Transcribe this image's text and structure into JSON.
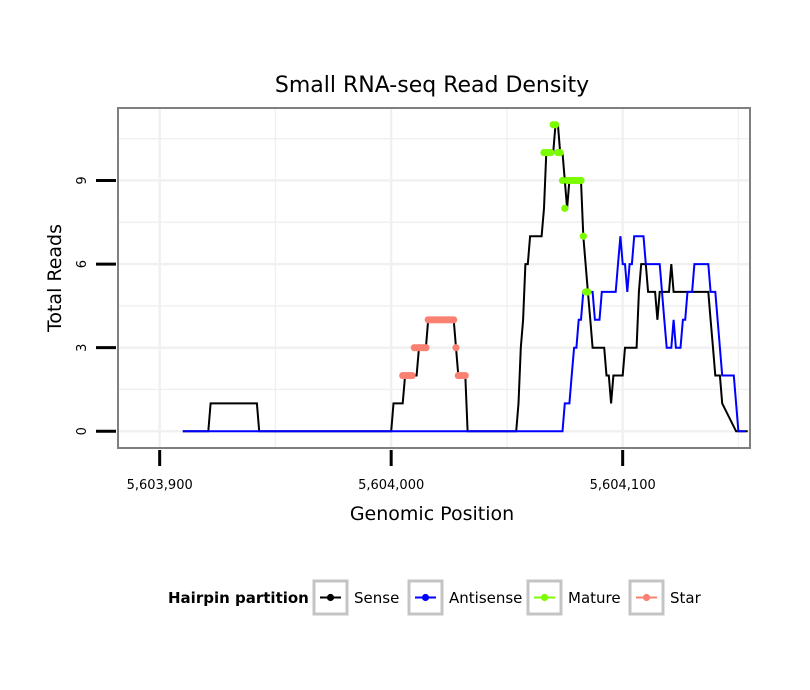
{
  "chart_data": {
    "type": "line",
    "title": "Small RNA-seq Read Density",
    "xlabel": "Genomic Position",
    "ylabel": "Total Reads",
    "xlim": [
      5603882,
      5604155
    ],
    "ylim": [
      -0.6,
      11.6
    ],
    "x_ticks": [
      5603900,
      5604000,
      5604100
    ],
    "x_tick_labels": [
      "5,603,900",
      "5,604,000",
      "5,604,100"
    ],
    "y_ticks": [
      0,
      3,
      6,
      9
    ],
    "y_tick_labels": [
      "0",
      "3",
      "6",
      "9"
    ],
    "grid": true,
    "legend": {
      "title": "Hairpin partition",
      "position": "bottom",
      "entries": [
        {
          "name": "Sense",
          "color": "#000000"
        },
        {
          "name": "Antisense",
          "color": "#0000ff"
        },
        {
          "name": "Mature",
          "color": "#7cfc00"
        },
        {
          "name": "Star",
          "color": "#fa8072"
        }
      ]
    },
    "series": [
      {
        "name": "Sense",
        "color": "#000000",
        "x": [
          5603910,
          5603921,
          5603922,
          5603942,
          5603943,
          5604000,
          5604001,
          5604005,
          5604006,
          5604011,
          5604012,
          5604015,
          5604016,
          5604027,
          5604028,
          5604029,
          5604030,
          5604032,
          5604033,
          5604054,
          5604055,
          5604056,
          5604057,
          5604058,
          5604059,
          5604060,
          5604061,
          5604062,
          5604065,
          5604066,
          5604067,
          5604069,
          5604070,
          5604071,
          5604072,
          5604073,
          5604074,
          5604075,
          5604076,
          5604077,
          5604078,
          5604079,
          5604080,
          5604082,
          5604083,
          5604084,
          5604085,
          5604086,
          5604087,
          5604088,
          5604089,
          5604092,
          5604093,
          5604094,
          5604095,
          5604096,
          5604097,
          5604100,
          5604101,
          5604102,
          5604106,
          5604107,
          5604108,
          5604110,
          5604111,
          5604112,
          5604114,
          5604115,
          5604116,
          5604117,
          5604120,
          5604121,
          5604122,
          5604137,
          5604138,
          5604139,
          5604140,
          5604142,
          5604143,
          5604149,
          5604154
        ],
        "y": [
          0,
          0,
          1,
          1,
          0,
          0,
          1,
          1,
          2,
          2,
          3,
          3,
          4,
          4,
          3,
          2,
          2,
          2,
          0,
          0,
          1,
          3,
          4,
          6,
          6,
          7,
          7,
          7,
          7,
          8,
          10,
          10,
          10,
          11,
          11,
          10,
          10,
          9,
          8,
          9,
          9,
          9,
          9,
          9,
          7,
          6,
          5,
          4,
          3,
          3,
          3,
          3,
          2,
          2,
          1,
          2,
          2,
          2,
          3,
          3,
          3,
          5,
          6,
          6,
          5,
          5,
          5,
          4,
          5,
          5,
          5,
          6,
          5,
          5,
          4,
          3,
          2,
          2,
          1,
          0,
          0
        ]
      },
      {
        "name": "Antisense",
        "color": "#0000ff",
        "x": [
          5603910,
          5604074,
          5604075,
          5604076,
          5604077,
          5604078,
          5604079,
          5604080,
          5604081,
          5604082,
          5604083,
          5604084,
          5604087,
          5604088,
          5604090,
          5604091,
          5604094,
          5604096,
          5604097,
          5604098,
          5604099,
          5604100,
          5604101,
          5604102,
          5604103,
          5604104,
          5604105,
          5604106,
          5604107,
          5604109,
          5604110,
          5604116,
          5604117,
          5604118,
          5604119,
          5604120,
          5604121,
          5604122,
          5604123,
          5604124,
          5604125,
          5604126,
          5604127,
          5604128,
          5604130,
          5604131,
          5604137,
          5604138,
          5604139,
          5604140,
          5604141,
          5604142,
          5604143,
          5604145,
          5604146,
          5604147,
          5604148,
          5604149,
          5604150,
          5604153
        ],
        "y": [
          0,
          0,
          1,
          1,
          1,
          2,
          3,
          3,
          4,
          4,
          5,
          5,
          5,
          4,
          4,
          5,
          5,
          5,
          5,
          6,
          7,
          6,
          6,
          5,
          6,
          6,
          7,
          7,
          7,
          7,
          6,
          6,
          5,
          4,
          3,
          3,
          3,
          4,
          3,
          3,
          3,
          4,
          4,
          5,
          5,
          6,
          6,
          5,
          5,
          5,
          4,
          3,
          2,
          2,
          2,
          2,
          2,
          1,
          0,
          0
        ]
      },
      {
        "name": "Mature",
        "color": "#7cfc00",
        "x": [
          5604066,
          5604067,
          5604068,
          5604069,
          5604070,
          5604071,
          5604072,
          5604073,
          5604074,
          5604075,
          5604076,
          5604077,
          5604078,
          5604079,
          5604080,
          5604081,
          5604082,
          5604083,
          5604084,
          5604085
        ],
        "y": [
          10,
          10,
          10,
          10,
          11,
          11,
          10,
          10,
          9,
          8,
          9,
          9,
          9,
          9,
          9,
          9,
          9,
          7,
          5,
          5
        ]
      },
      {
        "name": "Star",
        "color": "#fa8072",
        "x": [
          5604005,
          5604006,
          5604007,
          5604008,
          5604009,
          5604010,
          5604011,
          5604012,
          5604013,
          5604014,
          5604015,
          5604016,
          5604017,
          5604018,
          5604019,
          5604020,
          5604021,
          5604022,
          5604023,
          5604024,
          5604025,
          5604026,
          5604027,
          5604028,
          5604029,
          5604030,
          5604031,
          5604032
        ],
        "y": [
          2,
          2,
          2,
          2,
          2,
          3,
          3,
          3,
          3,
          3,
          3,
          4,
          4,
          4,
          4,
          4,
          4,
          4,
          4,
          4,
          4,
          4,
          4,
          3,
          2,
          2,
          2,
          2
        ]
      }
    ]
  }
}
